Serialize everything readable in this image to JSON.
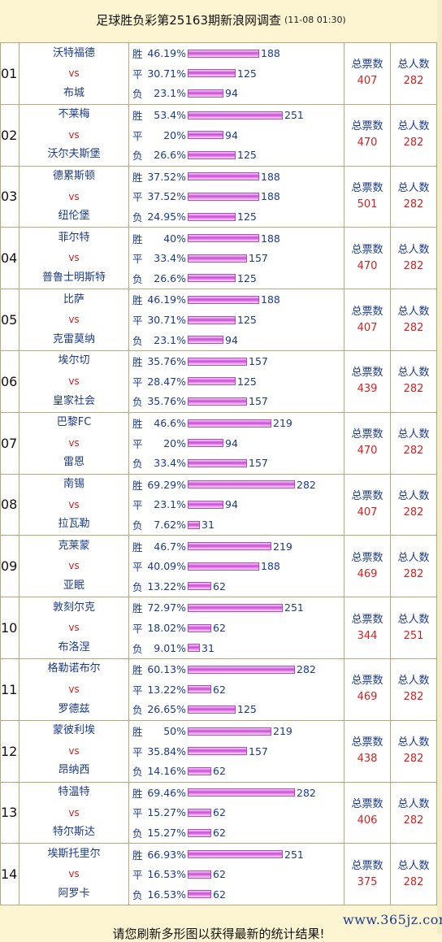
{
  "header": {
    "title": "足球胜负彩第25163期新浪网调查",
    "time": "(11-08 01:30)"
  },
  "labels": {
    "win": "胜",
    "draw": "平",
    "lose": "负",
    "vs": "vs",
    "total_votes": "总票数",
    "total_people": "总人数"
  },
  "bar_scale_max": 282,
  "matches": [
    {
      "no": "01",
      "home": "沃特福德",
      "away": "布城",
      "win": {
        "pct": "46.19%",
        "count": 188
      },
      "draw": {
        "pct": "30.71%",
        "count": 125
      },
      "lose": {
        "pct": "23.1%",
        "count": 94
      },
      "total_votes": "407",
      "total_people": "282"
    },
    {
      "no": "02",
      "home": "不莱梅",
      "away": "沃尔夫斯堡",
      "win": {
        "pct": "53.4%",
        "count": 251
      },
      "draw": {
        "pct": "20%",
        "count": 94
      },
      "lose": {
        "pct": "26.6%",
        "count": 125
      },
      "total_votes": "470",
      "total_people": "282"
    },
    {
      "no": "03",
      "home": "德累斯顿",
      "away": "纽伦堡",
      "win": {
        "pct": "37.52%",
        "count": 188
      },
      "draw": {
        "pct": "37.52%",
        "count": 188
      },
      "lose": {
        "pct": "24.95%",
        "count": 125
      },
      "total_votes": "501",
      "total_people": "282"
    },
    {
      "no": "04",
      "home": "菲尔特",
      "away": "普鲁士明斯特",
      "win": {
        "pct": "40%",
        "count": 188
      },
      "draw": {
        "pct": "33.4%",
        "count": 157
      },
      "lose": {
        "pct": "26.6%",
        "count": 125
      },
      "total_votes": "470",
      "total_people": "282"
    },
    {
      "no": "05",
      "home": "比萨",
      "away": "克雷莫纳",
      "win": {
        "pct": "46.19%",
        "count": 188
      },
      "draw": {
        "pct": "30.71%",
        "count": 125
      },
      "lose": {
        "pct": "23.1%",
        "count": 94
      },
      "total_votes": "407",
      "total_people": "282"
    },
    {
      "no": "06",
      "home": "埃尔切",
      "away": "皇家社会",
      "win": {
        "pct": "35.76%",
        "count": 157
      },
      "draw": {
        "pct": "28.47%",
        "count": 125
      },
      "lose": {
        "pct": "35.76%",
        "count": 157
      },
      "total_votes": "439",
      "total_people": "282"
    },
    {
      "no": "07",
      "home": "巴黎FC",
      "away": "雷恩",
      "win": {
        "pct": "46.6%",
        "count": 219
      },
      "draw": {
        "pct": "20%",
        "count": 94
      },
      "lose": {
        "pct": "33.4%",
        "count": 157
      },
      "total_votes": "470",
      "total_people": "282"
    },
    {
      "no": "08",
      "home": "南锡",
      "away": "拉瓦勒",
      "win": {
        "pct": "69.29%",
        "count": 282
      },
      "draw": {
        "pct": "23.1%",
        "count": 94
      },
      "lose": {
        "pct": "7.62%",
        "count": 31
      },
      "total_votes": "407",
      "total_people": "282"
    },
    {
      "no": "09",
      "home": "克莱蒙",
      "away": "亚眠",
      "win": {
        "pct": "46.7%",
        "count": 219
      },
      "draw": {
        "pct": "40.09%",
        "count": 188
      },
      "lose": {
        "pct": "13.22%",
        "count": 62
      },
      "total_votes": "469",
      "total_people": "282"
    },
    {
      "no": "10",
      "home": "敦刻尔克",
      "away": "布洛涅",
      "win": {
        "pct": "72.97%",
        "count": 251
      },
      "draw": {
        "pct": "18.02%",
        "count": 62
      },
      "lose": {
        "pct": "9.01%",
        "count": 31
      },
      "total_votes": "344",
      "total_people": "251"
    },
    {
      "no": "11",
      "home": "格勒诺布尔",
      "away": "罗德兹",
      "win": {
        "pct": "60.13%",
        "count": 282
      },
      "draw": {
        "pct": "13.22%",
        "count": 62
      },
      "lose": {
        "pct": "26.65%",
        "count": 125
      },
      "total_votes": "469",
      "total_people": "282"
    },
    {
      "no": "12",
      "home": "蒙彼利埃",
      "away": "昂纳西",
      "win": {
        "pct": "50%",
        "count": 219
      },
      "draw": {
        "pct": "35.84%",
        "count": 157
      },
      "lose": {
        "pct": "14.16%",
        "count": 62
      },
      "total_votes": "438",
      "total_people": "282"
    },
    {
      "no": "13",
      "home": "特温特",
      "away": "特尔斯达",
      "win": {
        "pct": "69.46%",
        "count": 282
      },
      "draw": {
        "pct": "15.27%",
        "count": 62
      },
      "lose": {
        "pct": "15.27%",
        "count": 62
      },
      "total_votes": "406",
      "total_people": "282"
    },
    {
      "no": "14",
      "home": "埃斯托里尔",
      "away": "阿罗卡",
      "win": {
        "pct": "66.93%",
        "count": 251
      },
      "draw": {
        "pct": "16.53%",
        "count": 62
      },
      "lose": {
        "pct": "16.53%",
        "count": 62
      },
      "total_votes": "375",
      "total_people": "282"
    }
  ],
  "footer": {
    "text": "请您刷新多形图以获得最新的统计结果!"
  },
  "watermark": {
    "text": "www.365jz.com"
  },
  "colors": {
    "background": "#fdf5d2",
    "team_text": "#1a3a8a",
    "vs_text": "#d42020",
    "bar": "#c94ad4"
  }
}
